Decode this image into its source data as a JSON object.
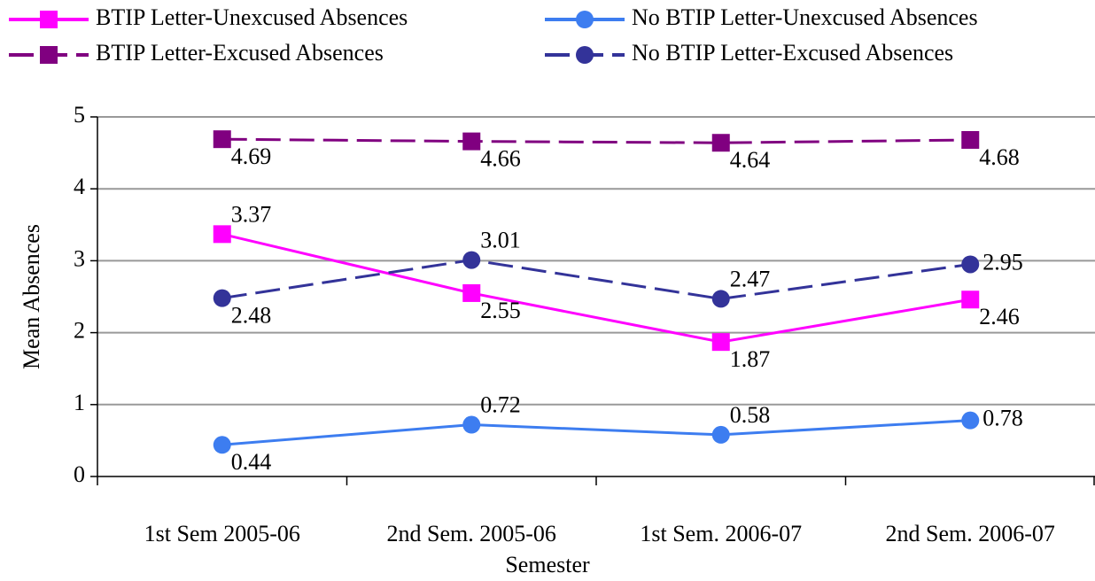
{
  "chart_data": {
    "type": "line",
    "x_label": "Semester",
    "y_label": "Mean Absences",
    "categories": [
      "1st Sem 2005-06",
      "2nd Sem. 2005-06",
      "1st Sem. 2006-07",
      "2nd Sem. 2006-07"
    ],
    "series": [
      {
        "name": "BTIP Letter-Unexcused Absences",
        "color": "#ff00ff",
        "dash": false,
        "marker": "square",
        "values": [
          3.37,
          2.55,
          1.87,
          2.46
        ]
      },
      {
        "name": "No BTIP Letter-Unexcused Absences",
        "color": "#3d7df0",
        "dash": false,
        "marker": "circle",
        "values": [
          0.44,
          0.72,
          0.58,
          0.78
        ]
      },
      {
        "name": "BTIP Letter-Excused Absences",
        "color": "#800080",
        "dash": true,
        "marker": "square",
        "values": [
          4.69,
          4.66,
          4.64,
          4.68
        ]
      },
      {
        "name": "No BTIP Letter-Excused Absences",
        "color": "#333399",
        "dash": true,
        "marker": "circle",
        "values": [
          2.48,
          3.01,
          2.47,
          2.95
        ]
      }
    ],
    "ylim": [
      0,
      5
    ],
    "yticks": [
      0,
      1,
      2,
      3,
      4,
      5
    ],
    "grid": true,
    "legend": "top"
  }
}
